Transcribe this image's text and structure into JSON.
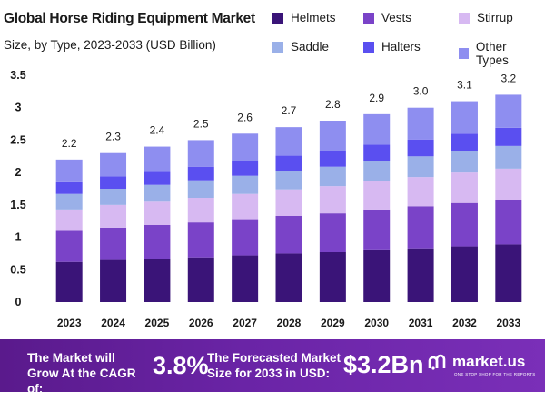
{
  "title": "Global Horse Riding Equipment Market",
  "subtitle": "Size, by Type, 2023-2033 (USD Billion)",
  "chart_data": {
    "type": "bar",
    "stacked": true,
    "categories": [
      "2023",
      "2024",
      "2025",
      "2026",
      "2027",
      "2028",
      "2029",
      "2030",
      "2031",
      "2032",
      "2033"
    ],
    "totals": [
      2.2,
      2.3,
      2.4,
      2.5,
      2.6,
      2.7,
      2.8,
      2.9,
      3.0,
      3.1,
      3.2
    ],
    "total_labels": [
      "2.2",
      "2.3",
      "2.4",
      "2.5",
      "2.6",
      "2.7",
      "2.8",
      "2.9",
      "3.0",
      "3.1",
      "3.2"
    ],
    "series": [
      {
        "name": "Helmets",
        "color": "#3a1478",
        "values": [
          0.62,
          0.65,
          0.67,
          0.69,
          0.72,
          0.75,
          0.77,
          0.8,
          0.83,
          0.86,
          0.89
        ]
      },
      {
        "name": "Vests",
        "color": "#7a43c8",
        "values": [
          0.48,
          0.5,
          0.52,
          0.54,
          0.56,
          0.58,
          0.6,
          0.63,
          0.65,
          0.67,
          0.69
        ]
      },
      {
        "name": "Stirrup",
        "color": "#d7b9f2",
        "values": [
          0.33,
          0.35,
          0.36,
          0.38,
          0.39,
          0.41,
          0.42,
          0.44,
          0.45,
          0.47,
          0.48
        ]
      },
      {
        "name": "Saddle",
        "color": "#9ab0e8",
        "values": [
          0.24,
          0.25,
          0.26,
          0.27,
          0.28,
          0.29,
          0.3,
          0.31,
          0.32,
          0.33,
          0.35
        ]
      },
      {
        "name": "Halters",
        "color": "#5a4ff0",
        "values": [
          0.18,
          0.19,
          0.2,
          0.21,
          0.22,
          0.23,
          0.24,
          0.25,
          0.26,
          0.27,
          0.28
        ]
      },
      {
        "name": "Other Types",
        "color": "#8e8ef0",
        "values": [
          0.35,
          0.36,
          0.39,
          0.41,
          0.43,
          0.44,
          0.47,
          0.47,
          0.49,
          0.5,
          0.51
        ]
      }
    ],
    "ylim": [
      0,
      3.5
    ],
    "yticks": [
      "0",
      "0.5",
      "1",
      "1.5",
      "2",
      "2.5",
      "3",
      "3.5"
    ],
    "ytick_values": [
      0,
      0.5,
      1,
      1.5,
      2,
      2.5,
      3,
      3.5
    ],
    "xlabel": "",
    "ylabel": "",
    "legend_position": "top-right"
  },
  "banner": {
    "text1": "The Market will Grow At the CAGR of:",
    "cagr": "3.8%",
    "text2": "The Forecasted Market Size for 2033 in USD:",
    "value": "$3.2Bn",
    "logo_name": "market.us",
    "logo_tagline": "ONE STOP SHOP FOR THE REPORTS"
  }
}
